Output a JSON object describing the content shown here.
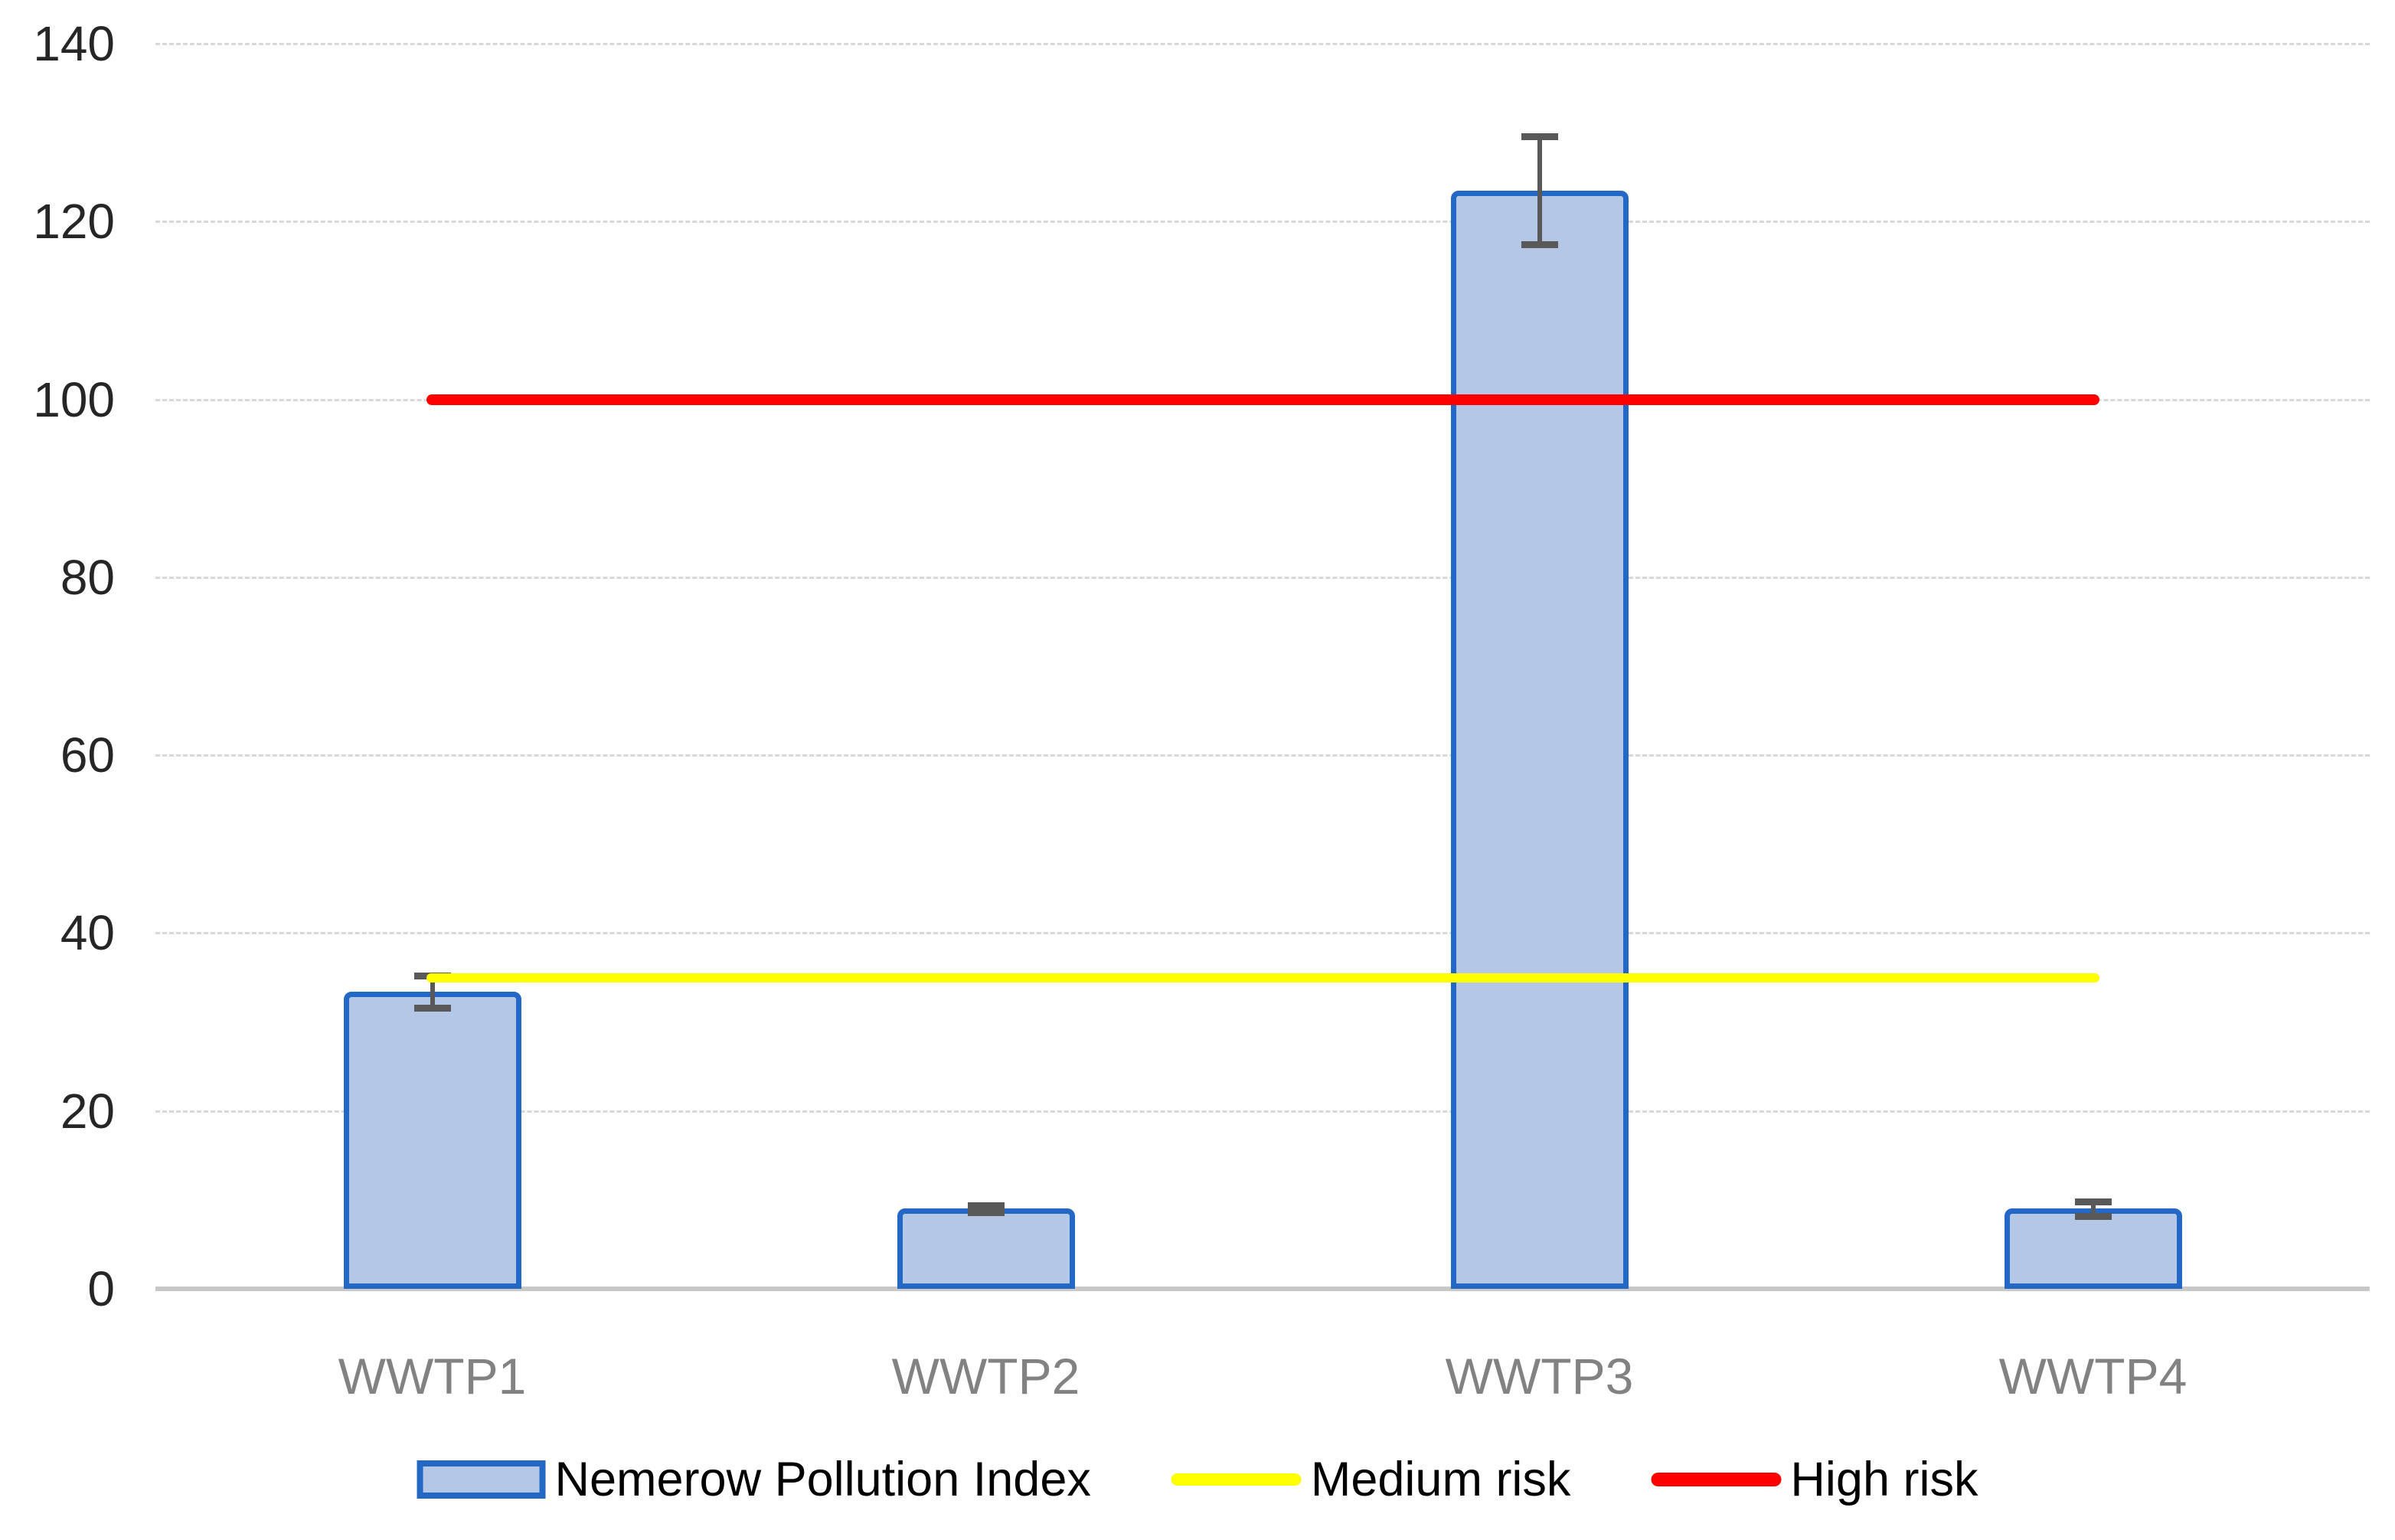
{
  "colors": {
    "bar_fill": "#B4C7E7",
    "bar_border": "#2368C4",
    "error_bar": "#595959",
    "medium_risk_line": "#FFFF00",
    "high_risk_line": "#FF0000",
    "gridline": "#D8D8D8",
    "axis_line": "#C8C8C8",
    "tick_label": "#262626",
    "category_label": "#828282",
    "legend_text": "#000000"
  },
  "chart_data": {
    "type": "bar",
    "title": "",
    "xlabel": "",
    "ylabel": "",
    "categories": [
      "WWTP1",
      "WWTP2",
      "WWTP3",
      "WWTP4"
    ],
    "series": [
      {
        "name": "Nemerow Pollution Index",
        "type": "bar",
        "values": [
          33.4,
          9.0,
          123.5,
          9.0
        ],
        "error_bars": [
          1.8,
          0.4,
          6.1,
          0.8
        ]
      },
      {
        "name": "Medium risk",
        "type": "threshold-line",
        "value": 35,
        "color_key": "medium_risk_line"
      },
      {
        "name": "High risk",
        "type": "threshold-line",
        "value": 100,
        "color_key": "high_risk_line"
      }
    ],
    "ylim": [
      0,
      140
    ],
    "yticks": [
      0,
      20,
      40,
      60,
      80,
      100,
      120,
      140
    ],
    "grid": true,
    "legend_position": "bottom"
  },
  "legend": {
    "items": [
      {
        "label": "Nemerow Pollution Index",
        "marker": "bar-swatch"
      },
      {
        "label": "Medium risk",
        "marker": "yellow-line"
      },
      {
        "label": "High risk",
        "marker": "red-line"
      }
    ]
  }
}
